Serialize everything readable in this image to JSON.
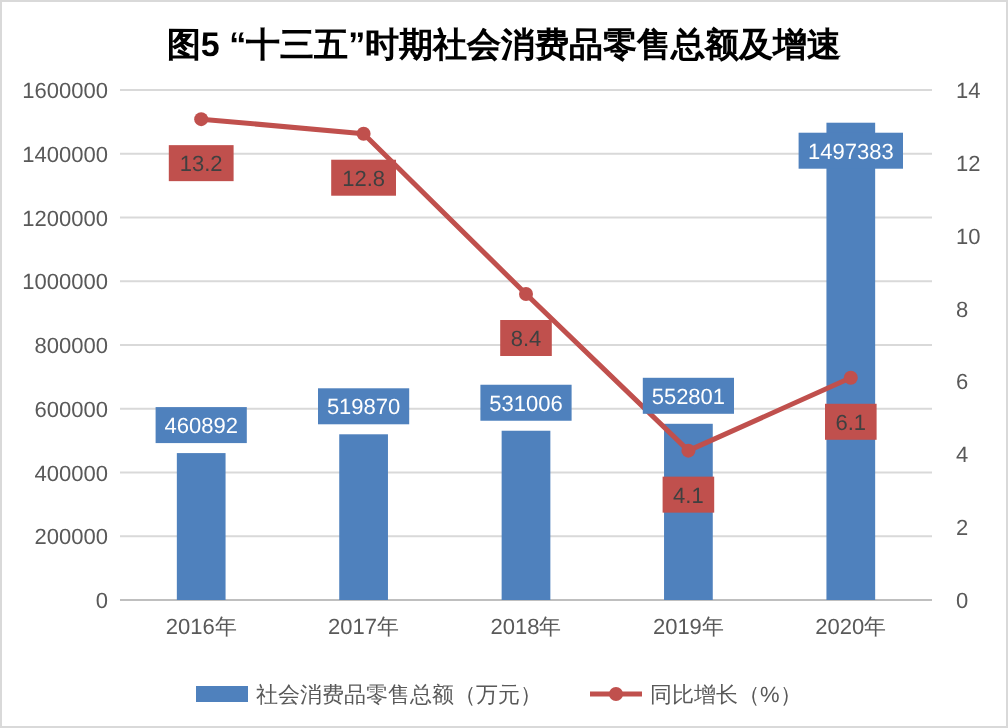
{
  "chart_data": {
    "type": "bar",
    "title": "图5 “十三五”时期社会消费品零售总额及增速",
    "categories": [
      "2016年",
      "2017年",
      "2018年",
      "2019年",
      "2020年"
    ],
    "series": [
      {
        "name": "社会消费品零售总额（万元）",
        "color": "#4f81bd",
        "values": [
          460892,
          519870,
          531006,
          552801,
          1497383
        ]
      },
      {
        "name": "同比增长（%）",
        "type": "line",
        "axis": "y2",
        "color": "#c0504d",
        "values": [
          13.2,
          12.8,
          8.4,
          4.1,
          6.1
        ]
      }
    ],
    "ylim": [
      0,
      1600000
    ],
    "yticks": [
      0,
      200000,
      400000,
      600000,
      800000,
      1000000,
      1200000,
      1400000,
      1600000
    ],
    "y2lim": [
      0,
      14
    ],
    "y2ticks": [
      0,
      2,
      4,
      6,
      8,
      10,
      12,
      14
    ],
    "grid": "y",
    "legend": "bottom",
    "data_labels": true,
    "marker": "circle"
  }
}
